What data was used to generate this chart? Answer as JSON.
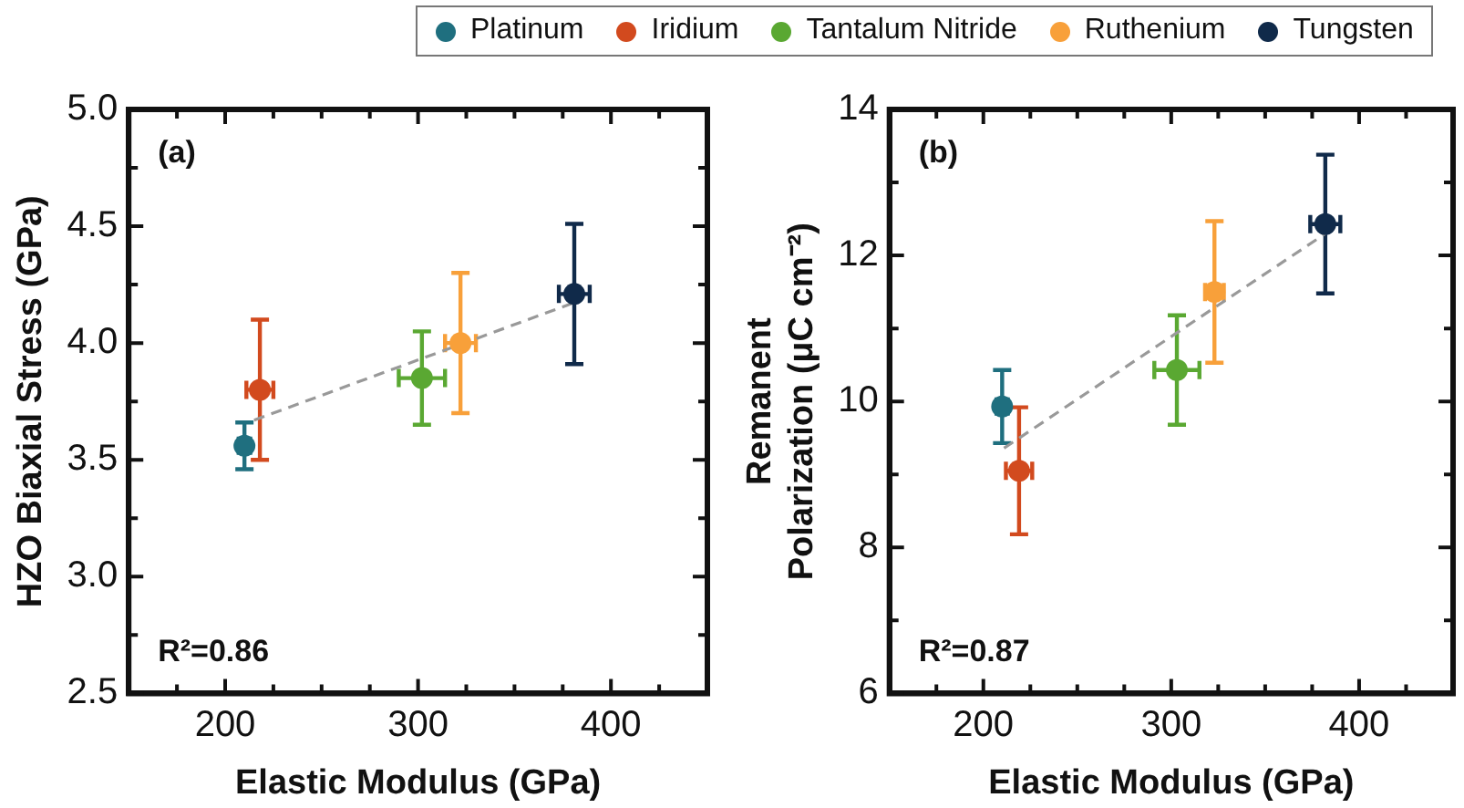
{
  "chart_data": [
    {
      "type": "scatter",
      "xlabel": "Elastic Modulus (GPa)",
      "ylabel": "HZO Biaxial Stress (GPa)",
      "xlim": [
        150,
        450
      ],
      "ylim": [
        2.5,
        5.0
      ],
      "xticks": [
        {
          "value": 175,
          "label": null
        },
        200,
        {
          "value": 225,
          "label": null
        },
        {
          "value": 250,
          "label": null
        },
        {
          "value": 275,
          "label": null
        },
        300,
        {
          "value": 325,
          "label": null
        },
        {
          "value": 350,
          "label": null
        },
        {
          "value": 375,
          "label": null
        },
        400,
        {
          "value": 425,
          "label": null
        }
      ],
      "yticks": [
        {
          "value": 2.5,
          "label": "2.5"
        },
        {
          "value": 2.75,
          "label": null
        },
        {
          "value": 3.0,
          "label": "3.0"
        },
        {
          "value": 3.25,
          "label": null
        },
        {
          "value": 3.5,
          "label": "3.5"
        },
        {
          "value": 3.75,
          "label": null
        },
        {
          "value": 4.0,
          "label": "4.0"
        },
        {
          "value": 4.25,
          "label": null
        },
        {
          "value": 4.5,
          "label": "4.5"
        },
        {
          "value": 4.75,
          "label": null
        },
        {
          "value": 5.0,
          "label": "5.0"
        }
      ],
      "grid": false,
      "legend": "top",
      "annotations": [
        "(a)",
        "R²=0.86"
      ],
      "series": [
        {
          "name": "Platinum",
          "color": "#1f6f7f",
          "x": [
            210
          ],
          "values": [
            3.56
          ],
          "errors": [
            0.1
          ],
          "xerrors": [
            3
          ]
        },
        {
          "name": "Iridium",
          "color": "#d24a1e",
          "x": [
            218
          ],
          "values": [
            3.8
          ],
          "errors": [
            0.3
          ],
          "xerrors": [
            7
          ]
        },
        {
          "name": "Tantalum Nitride",
          "color": "#5aa832",
          "x": [
            302
          ],
          "values": [
            3.85
          ],
          "errors": [
            0.2
          ],
          "xerrors": [
            12
          ]
        },
        {
          "name": "Ruthenium",
          "color": "#f8a03a",
          "x": [
            322
          ],
          "values": [
            4.0
          ],
          "errors": [
            0.3
          ],
          "xerrors": [
            8
          ]
        },
        {
          "name": "Tungsten",
          "color": "#102a4a",
          "x": [
            381
          ],
          "values": [
            4.21
          ],
          "errors": [
            0.3
          ],
          "xerrors": [
            8
          ]
        },
        {
          "type": "line",
          "color": "#999999",
          "line_style": "dashed",
          "marker": "none",
          "x": [
            215,
            380
          ],
          "values": [
            3.67,
            4.17
          ]
        }
      ]
    },
    {
      "type": "scatter",
      "xlabel": "Elastic Modulus (GPa)",
      "ylabel": "Remanent Polarization (μC cm⁻²)",
      "xlim": [
        150,
        450
      ],
      "ylim": [
        6,
        14
      ],
      "xticks": [
        {
          "value": 175,
          "label": null
        },
        200,
        {
          "value": 225,
          "label": null
        },
        {
          "value": 250,
          "label": null
        },
        {
          "value": 275,
          "label": null
        },
        300,
        {
          "value": 325,
          "label": null
        },
        {
          "value": 350,
          "label": null
        },
        {
          "value": 375,
          "label": null
        },
        400,
        {
          "value": 425,
          "label": null
        }
      ],
      "yticks": [
        6,
        {
          "value": 7,
          "label": null
        },
        8,
        {
          "value": 9,
          "label": null
        },
        10,
        {
          "value": 11,
          "label": null
        },
        12,
        {
          "value": 13,
          "label": null
        },
        14
      ],
      "grid": false,
      "annotations": [
        "(b)",
        "R²=0.87"
      ],
      "series": [
        {
          "color": "#1f6f7f",
          "x": [
            210
          ],
          "values": [
            9.93
          ],
          "errors": [
            0.5
          ],
          "xerrors": [
            3
          ]
        },
        {
          "color": "#d24a1e",
          "x": [
            219
          ],
          "values": [
            9.05
          ],
          "errors": [
            0.87
          ],
          "xerrors": [
            7
          ]
        },
        {
          "color": "#5aa832",
          "x": [
            303
          ],
          "values": [
            10.43
          ],
          "errors": [
            0.75
          ],
          "xerrors": [
            12
          ]
        },
        {
          "color": "#f8a03a",
          "x": [
            323
          ],
          "values": [
            11.5
          ],
          "errors": [
            0.97
          ],
          "xerrors": [
            5
          ]
        },
        {
          "color": "#102a4a",
          "x": [
            382
          ],
          "values": [
            12.43
          ],
          "errors": [
            0.95
          ],
          "xerrors": [
            8
          ]
        },
        {
          "type": "line",
          "color": "#999999",
          "line_style": "dashed",
          "marker": "none",
          "x": [
            211,
            385
          ],
          "values": [
            9.36,
            12.35
          ]
        }
      ]
    }
  ]
}
